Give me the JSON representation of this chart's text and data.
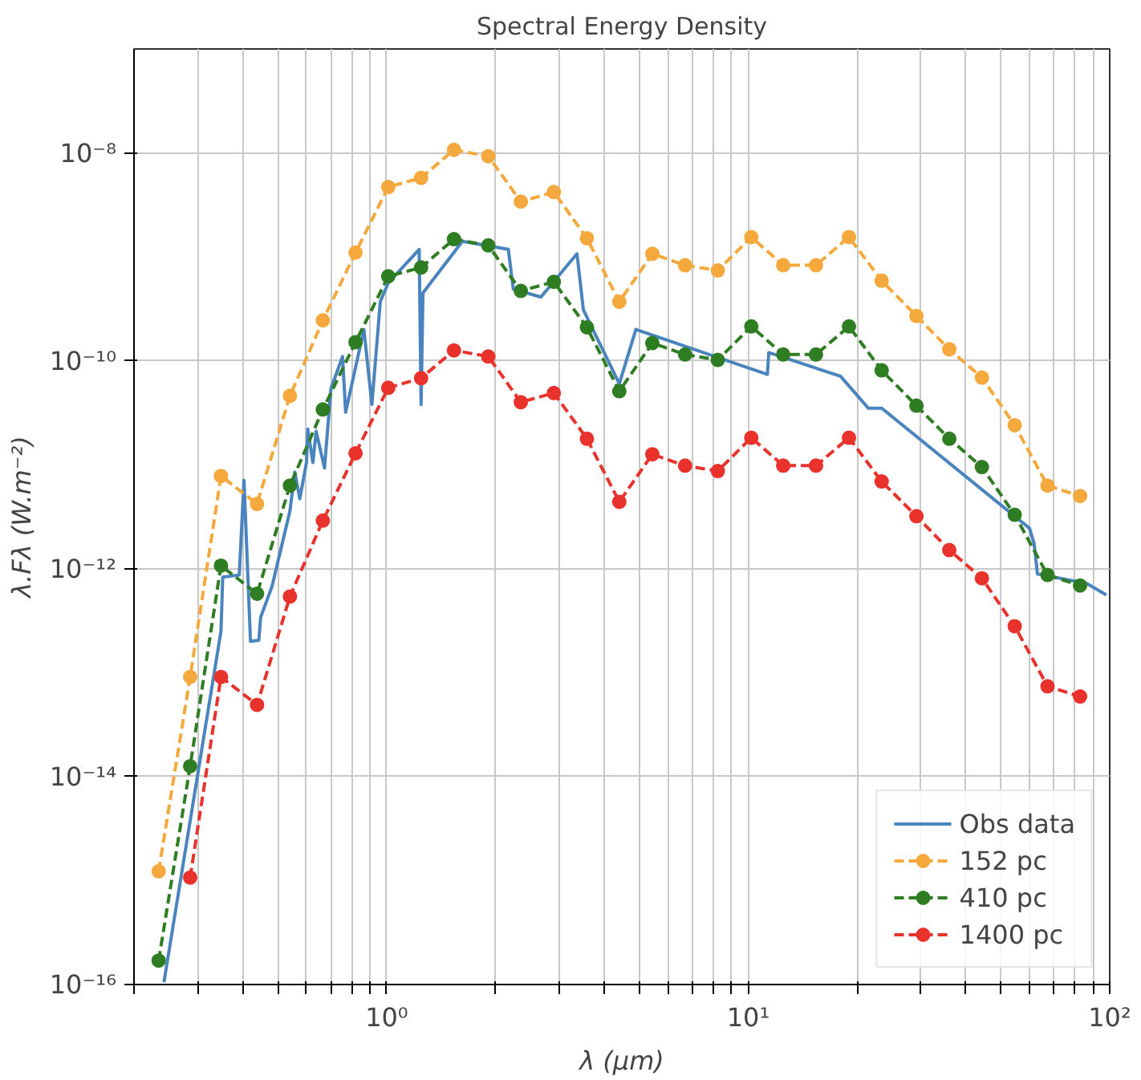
{
  "chart_data": {
    "type": "line",
    "title": "Spectral Energy Density",
    "xlabel": "λ (μm)",
    "ylabel": "λ.Fλ (W.m⁻²)",
    "log": "xy",
    "grid": true,
    "legend": "bottom right",
    "xlim": [
      0.2,
      100
    ],
    "ylim": [
      1e-16,
      1e-07
    ],
    "xticks": [
      {
        "value": 0.2,
        "label": null
      },
      {
        "value": 0.3,
        "label": null
      },
      {
        "value": 0.4,
        "label": null
      },
      {
        "value": 0.5,
        "label": null
      },
      {
        "value": 0.6,
        "label": null
      },
      {
        "value": 0.7,
        "label": null
      },
      {
        "value": 0.8,
        "label": null
      },
      {
        "value": 0.9,
        "label": null
      },
      {
        "value": 1,
        "label": "10⁰"
      },
      {
        "value": 2,
        "label": null
      },
      {
        "value": 3,
        "label": null
      },
      {
        "value": 4,
        "label": null
      },
      {
        "value": 5,
        "label": null
      },
      {
        "value": 6,
        "label": null
      },
      {
        "value": 7,
        "label": null
      },
      {
        "value": 8,
        "label": null
      },
      {
        "value": 9,
        "label": null
      },
      {
        "value": 10,
        "label": "10¹"
      },
      {
        "value": 20,
        "label": null
      },
      {
        "value": 30,
        "label": null
      },
      {
        "value": 40,
        "label": null
      },
      {
        "value": 50,
        "label": null
      },
      {
        "value": 60,
        "label": null
      },
      {
        "value": 70,
        "label": null
      },
      {
        "value": 80,
        "label": null
      },
      {
        "value": 90,
        "label": null
      },
      {
        "value": 100,
        "label": "10²"
      }
    ],
    "yticks": [
      {
        "value": 1e-16,
        "label": "10⁻¹⁶"
      },
      {
        "value": 1e-14,
        "label": "10⁻¹⁴"
      },
      {
        "value": 1e-12,
        "label": "10⁻¹²"
      },
      {
        "value": 1e-10,
        "label": "10⁻¹⁰"
      },
      {
        "value": 1e-08,
        "label": "10⁻⁸"
      }
    ],
    "series": [
      {
        "name": "Obs data",
        "color": "#4a84bf",
        "line_style": "solid",
        "marker": "none",
        "x": [
          0.242,
          0.348,
          0.352,
          0.391,
          0.403,
          0.42,
          0.443,
          0.448,
          0.482,
          0.54,
          0.557,
          0.575,
          0.6,
          0.605,
          0.625,
          0.638,
          0.673,
          0.701,
          0.755,
          0.77,
          0.865,
          0.91,
          0.96,
          1.01,
          1.23,
          1.245,
          1.26,
          1.62,
          2.17,
          2.24,
          2.67,
          3.36,
          3.5,
          4.4,
          4.89,
          11.3,
          11.4,
          18.0,
          21.5,
          23.4,
          60.0,
          61.8,
          63.1,
          86.4,
          97.9
        ],
        "values": [
          1.05e-16,
          2.5e-13,
          8.3e-13,
          8.7e-13,
          7.1e-12,
          2e-13,
          2.05e-13,
          3.4e-13,
          6.8e-13,
          3.6e-12,
          8.5e-12,
          4.7e-12,
          1.05e-11,
          2.2e-11,
          1.05e-11,
          2.1e-11,
          9.3e-12,
          5.4e-11,
          1.1e-10,
          3.2e-11,
          2e-10,
          3.8e-11,
          3.7e-10,
          5.6e-10,
          1.18e-09,
          3.8e-11,
          4.5e-10,
          1.41e-09,
          1.18e-09,
          4.9e-10,
          4.1e-10,
          1.07e-09,
          3.1e-10,
          6e-11,
          2e-10,
          7.4e-11,
          1.2e-10,
          7.1e-11,
          3.5e-11,
          3.5e-11,
          2.45e-12,
          1.74e-12,
          8.9e-13,
          7.2e-13,
          5.6e-13
        ]
      },
      {
        "name": "152 pc",
        "color": "#f5a83c",
        "line_style": "dashed",
        "marker": "circle",
        "x": [
          0.234,
          0.286,
          0.348,
          0.438,
          0.54,
          0.666,
          0.82,
          1.01,
          1.245,
          1.535,
          1.91,
          2.35,
          2.9,
          3.58,
          4.4,
          5.43,
          6.69,
          8.24,
          10.2,
          12.5,
          15.4,
          19.0,
          23.4,
          29.2,
          36.0,
          44.3,
          54.6,
          67.3,
          82.8
        ],
        "values": [
          1.23e-15,
          9.1e-14,
          7.8e-12,
          4.2e-12,
          4.6e-11,
          2.45e-10,
          1.1e-09,
          4.7e-09,
          5.75e-09,
          1.07e-08,
          9.3e-09,
          3.4e-09,
          4.2e-09,
          1.51e-09,
          3.7e-10,
          1.07e-09,
          8.3e-10,
          7.4e-10,
          1.55e-09,
          8.3e-10,
          8.3e-10,
          1.55e-09,
          5.9e-10,
          2.7e-10,
          1.29e-10,
          6.9e-11,
          2.4e-11,
          6.3e-12,
          5e-12
        ]
      },
      {
        "name": "410 pc",
        "color": "#2e7d22",
        "line_style": "dashed",
        "marker": "circle",
        "x": [
          0.234,
          0.286,
          0.348,
          0.438,
          0.54,
          0.666,
          0.82,
          1.01,
          1.245,
          1.535,
          1.91,
          2.35,
          2.9,
          3.58,
          4.4,
          5.43,
          6.69,
          8.24,
          10.2,
          12.5,
          15.4,
          19.0,
          23.4,
          29.2,
          36.0,
          44.3,
          54.6,
          67.3,
          82.8
        ],
        "values": [
          1.7e-16,
          1.26e-14,
          1.07e-12,
          5.75e-13,
          6.3e-12,
          3.4e-11,
          1.51e-10,
          6.5e-10,
          7.9e-10,
          1.48e-09,
          1.29e-09,
          4.7e-10,
          5.75e-10,
          2.1e-10,
          5.1e-11,
          1.48e-10,
          1.15e-10,
          1.02e-10,
          2.14e-10,
          1.15e-10,
          1.15e-10,
          2.14e-10,
          8.1e-11,
          3.7e-11,
          1.78e-11,
          9.5e-12,
          3.3e-12,
          8.7e-13,
          6.9e-13
        ]
      },
      {
        "name": "1400 pc",
        "color": "#e8322b",
        "line_style": "dashed",
        "marker": "circle",
        "x": [
          0.286,
          0.348,
          0.438,
          0.54,
          0.666,
          0.82,
          1.01,
          1.245,
          1.535,
          1.91,
          2.35,
          2.9,
          3.58,
          4.4,
          5.43,
          6.69,
          8.24,
          10.2,
          12.5,
          15.4,
          19.0,
          23.4,
          29.2,
          36.0,
          44.3,
          54.6,
          67.3,
          82.8
        ],
        "values": [
          1.07e-15,
          9.1e-14,
          4.9e-14,
          5.4e-13,
          2.9e-12,
          1.29e-11,
          5.5e-11,
          6.8e-11,
          1.26e-10,
          1.1e-10,
          4e-11,
          4.9e-11,
          1.78e-11,
          4.4e-12,
          1.26e-11,
          9.8e-12,
          8.7e-12,
          1.82e-11,
          9.8e-12,
          9.8e-12,
          1.82e-11,
          6.9e-12,
          3.2e-12,
          1.51e-12,
          8.1e-13,
          2.8e-13,
          7.4e-14,
          5.9e-14
        ]
      }
    ]
  }
}
